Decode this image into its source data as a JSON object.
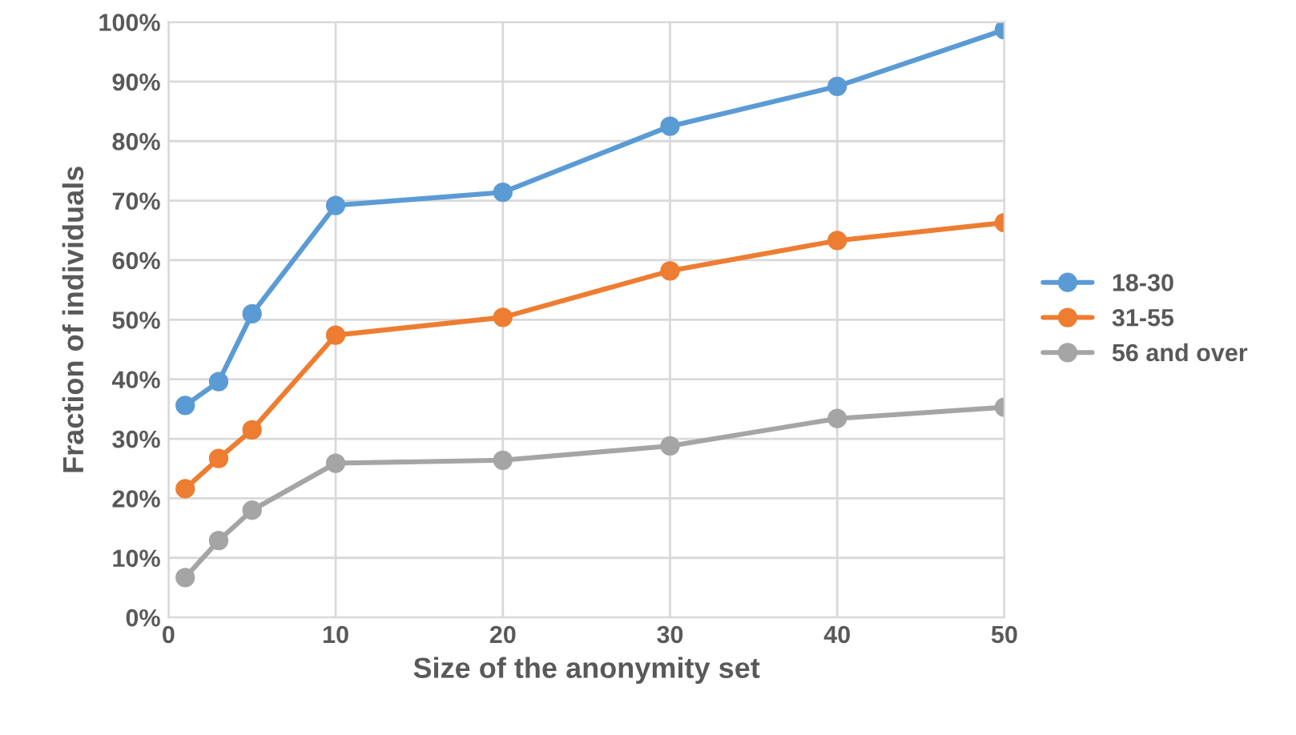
{
  "chart_data": {
    "type": "line",
    "xlabel": "Size of the anonymity set",
    "ylabel": "Fraction of individuals",
    "x": [
      1,
      3,
      5,
      10,
      20,
      30,
      40,
      50
    ],
    "series": [
      {
        "name": "18-30",
        "color": "#5b9bd5",
        "values": [
          35.6,
          39.6,
          51,
          69.2,
          71.4,
          82.5,
          89.2,
          98.7
        ]
      },
      {
        "name": "31-55",
        "color": "#ed7d31",
        "values": [
          21.6,
          26.7,
          31.5,
          47.4,
          50.4,
          58.2,
          63.3,
          66.3
        ]
      },
      {
        "name": "56 and over",
        "color": "#a5a5a5",
        "values": [
          6.7,
          12.9,
          18,
          25.9,
          26.4,
          28.8,
          33.4,
          35.3
        ]
      }
    ],
    "xlim": [
      0,
      50
    ],
    "xticks": [
      0,
      10,
      20,
      30,
      40,
      50
    ],
    "ylim": [
      0,
      100
    ],
    "yticks": [
      {
        "value": 0,
        "label": "0%"
      },
      {
        "value": 10,
        "label": "10%"
      },
      {
        "value": 20,
        "label": "20%"
      },
      {
        "value": 30,
        "label": "30%"
      },
      {
        "value": 40,
        "label": "40%"
      },
      {
        "value": 50,
        "label": "50%"
      },
      {
        "value": 60,
        "label": "60%"
      },
      {
        "value": 70,
        "label": "70%"
      },
      {
        "value": 80,
        "label": "80%"
      },
      {
        "value": 90,
        "label": "90%"
      },
      {
        "value": 100,
        "label": "100%"
      }
    ],
    "grid": true,
    "legend": "right",
    "marker": "circle",
    "line_style": "solid"
  }
}
